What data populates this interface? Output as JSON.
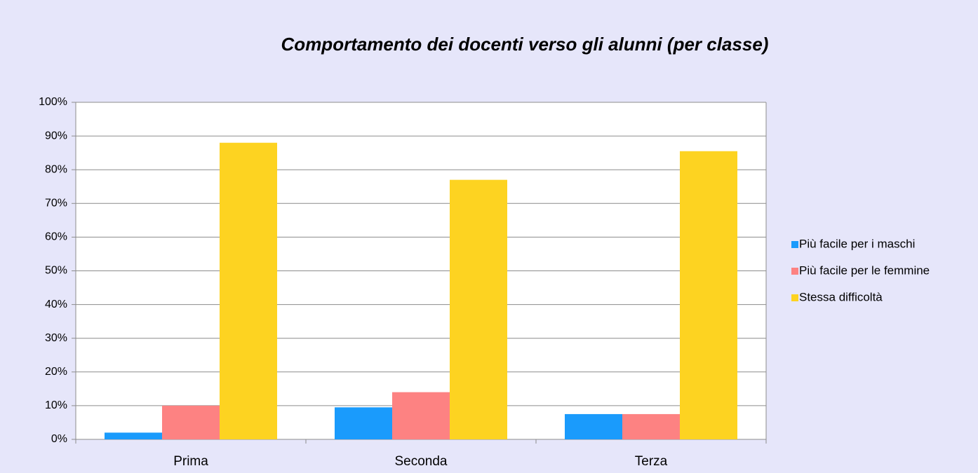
{
  "chart_data": {
    "type": "bar",
    "title": "Comportamento  dei docenti verso gli alunni (per classe)",
    "categories": [
      "Prima",
      "Seconda",
      "Terza"
    ],
    "series": [
      {
        "name": "Più facile per i maschi",
        "color": "#1a9bfc",
        "values": [
          2,
          9.5,
          7.5
        ]
      },
      {
        "name": "Più facile per le femmine",
        "color": "#fd8282",
        "values": [
          10,
          14,
          7.5
        ]
      },
      {
        "name": "Stessa difficoltà",
        "color": "#fdd321",
        "values": [
          88,
          77,
          85.5
        ]
      }
    ],
    "ylim": [
      0,
      100
    ],
    "yticks": [
      {
        "value": 0,
        "label": "0%"
      },
      {
        "value": 10,
        "label": "10%"
      },
      {
        "value": 20,
        "label": "20%"
      },
      {
        "value": 30,
        "label": "30%"
      },
      {
        "value": 40,
        "label": "40%"
      },
      {
        "value": 50,
        "label": "50%"
      },
      {
        "value": 60,
        "label": "60%"
      },
      {
        "value": 70,
        "label": "70%"
      },
      {
        "value": 80,
        "label": "80%"
      },
      {
        "value": 90,
        "label": "90%"
      },
      {
        "value": 100,
        "label": "100%"
      }
    ],
    "grid": true,
    "legend": "right"
  }
}
